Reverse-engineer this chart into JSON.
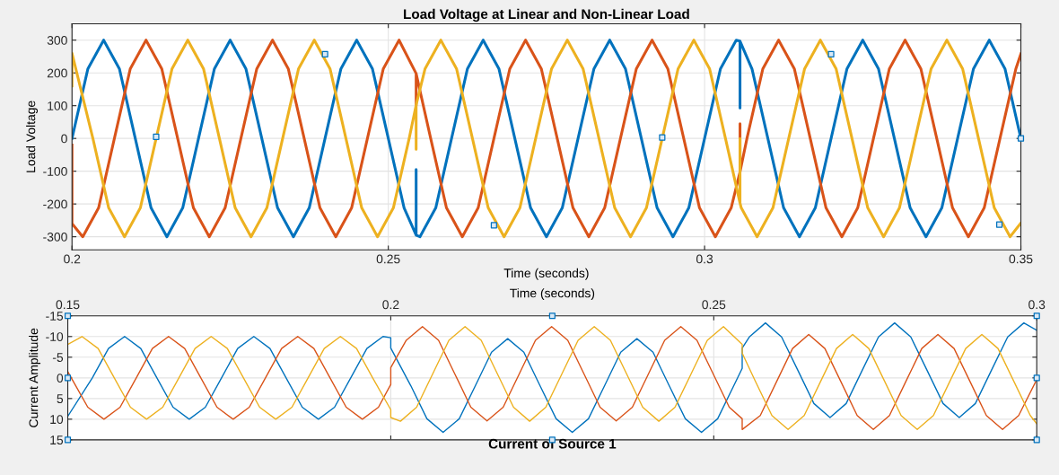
{
  "chart_data": [
    {
      "type": "line",
      "title": "Load Voltage at Linear and Non-Linear Load",
      "xlabel": "Time (seconds)",
      "ylabel": "Load Voltage",
      "xlim": [
        0.2,
        0.35
      ],
      "xticks": [
        0.2,
        0.25,
        0.3,
        0.35
      ],
      "ylim": [
        -340,
        350
      ],
      "yticks": [
        -300,
        -200,
        -100,
        0,
        100,
        200,
        300
      ],
      "grid": true,
      "series": [
        {
          "color": "#0072bd",
          "x": [
            0.2,
            0.2025,
            0.205,
            0.2075,
            0.21,
            0.2125,
            0.215,
            0.2175,
            0.22,
            0.2225,
            0.225,
            0.2275,
            0.23,
            0.2325,
            0.235,
            0.2375,
            0.24,
            0.2425,
            0.245,
            0.2475,
            0.25,
            0.2525,
            0.2544,
            0.2544,
            0.2544,
            0.255,
            0.2575,
            0.26,
            0.2625,
            0.265,
            0.2675,
            0.27,
            0.2725,
            0.275,
            0.2775,
            0.28,
            0.2825,
            0.285,
            0.2875,
            0.29,
            0.2925,
            0.295,
            0.2975,
            0.3,
            0.3025,
            0.305,
            0.3056,
            0.3056,
            0.3056,
            0.3075,
            0.31,
            0.3125,
            0.315,
            0.3175,
            0.32,
            0.3225,
            0.325,
            0.3275,
            0.33,
            0.3325,
            0.335,
            0.3375,
            0.34,
            0.3425,
            0.345,
            0.3475,
            0.35
          ],
          "values": [
            0,
            212,
            300,
            212,
            0,
            -212,
            -300,
            -212,
            0,
            212,
            300,
            212,
            0,
            -212,
            -300,
            -212,
            0,
            212,
            300,
            212,
            0,
            -212,
            -295,
            -95,
            -295,
            -300,
            -212,
            0,
            212,
            300,
            212,
            0,
            -212,
            -300,
            -212,
            0,
            212,
            300,
            212,
            0,
            -212,
            -300,
            -212,
            0,
            212,
            300,
            297,
            93,
            297,
            212,
            0,
            -212,
            -300,
            -212,
            0,
            212,
            300,
            212,
            0,
            -212,
            -300,
            -212,
            0,
            212,
            300,
            212,
            0
          ]
        },
        {
          "color": "#d95319",
          "x": [
            0.2,
            0.2,
            0.2017,
            0.2042,
            0.2067,
            0.2092,
            0.2117,
            0.2142,
            0.2167,
            0.2192,
            0.2217,
            0.2242,
            0.2267,
            0.2292,
            0.2317,
            0.2342,
            0.2367,
            0.2392,
            0.2417,
            0.2442,
            0.2467,
            0.2492,
            0.2517,
            0.2544,
            0.2544,
            0.2544,
            0.2567,
            0.2592,
            0.2617,
            0.2642,
            0.2667,
            0.2692,
            0.2717,
            0.2742,
            0.2767,
            0.2792,
            0.2817,
            0.2842,
            0.2867,
            0.2892,
            0.2917,
            0.2942,
            0.2967,
            0.2992,
            0.3017,
            0.3042,
            0.3056,
            0.3056,
            0.3056,
            0.3067,
            0.3092,
            0.3117,
            0.3142,
            0.3167,
            0.3192,
            0.3217,
            0.3242,
            0.3267,
            0.3292,
            0.3317,
            0.3342,
            0.3367,
            0.3392,
            0.3417,
            0.3442,
            0.3467,
            0.3492,
            0.35
          ],
          "values": [
            -20,
            -260,
            -300,
            -212,
            0,
            212,
            300,
            212,
            0,
            -212,
            -300,
            -212,
            0,
            212,
            300,
            212,
            0,
            -212,
            -300,
            -212,
            0,
            212,
            300,
            198,
            100,
            198,
            0,
            -212,
            -300,
            -212,
            0,
            212,
            300,
            212,
            0,
            -212,
            -300,
            -212,
            0,
            212,
            300,
            212,
            0,
            -212,
            -300,
            -212,
            -102,
            45,
            -102,
            0,
            212,
            300,
            212,
            0,
            -212,
            -300,
            -212,
            0,
            212,
            300,
            212,
            0,
            -212,
            -300,
            -212,
            0,
            212,
            258
          ]
        },
        {
          "color": "#edb120",
          "x": [
            0.2,
            0.2,
            0.2033,
            0.2058,
            0.2083,
            0.2108,
            0.2133,
            0.2158,
            0.2183,
            0.2208,
            0.2233,
            0.2258,
            0.2283,
            0.2308,
            0.2333,
            0.2358,
            0.2383,
            0.2408,
            0.2433,
            0.2458,
            0.2483,
            0.2508,
            0.2533,
            0.2544,
            0.2544,
            0.2544,
            0.2558,
            0.2583,
            0.2608,
            0.2633,
            0.2658,
            0.2683,
            0.2708,
            0.2733,
            0.2758,
            0.2783,
            0.2808,
            0.2833,
            0.2858,
            0.2883,
            0.2908,
            0.2933,
            0.2958,
            0.2983,
            0.3008,
            0.3033,
            0.3056,
            0.3056,
            0.3056,
            0.3058,
            0.3083,
            0.3108,
            0.3133,
            0.3158,
            0.3183,
            0.3208,
            0.3233,
            0.3258,
            0.3283,
            0.3308,
            0.3333,
            0.3358,
            0.3383,
            0.3408,
            0.3433,
            0.3458,
            0.3483,
            0.35
          ],
          "values": [
            160,
            260,
            0,
            -212,
            -300,
            -212,
            0,
            212,
            300,
            212,
            0,
            -212,
            -300,
            -212,
            0,
            212,
            300,
            212,
            0,
            -212,
            -300,
            -212,
            0,
            102,
            -33,
            102,
            212,
            300,
            212,
            0,
            -212,
            -300,
            -212,
            0,
            212,
            300,
            212,
            0,
            -212,
            -300,
            -212,
            0,
            212,
            300,
            212,
            0,
            -197,
            0,
            -197,
            -212,
            -300,
            -212,
            0,
            212,
            300,
            212,
            0,
            -212,
            -300,
            -212,
            0,
            212,
            300,
            212,
            0,
            -212,
            -300,
            -258
          ]
        },
        {
          "type": "scatter",
          "marker": "square",
          "color": "#0072bd",
          "x": [
            0.2133,
            0.24,
            0.2667,
            0.2933,
            0.32,
            0.3466,
            0.35
          ],
          "values": [
            5,
            257,
            -265,
            3,
            257,
            -263,
            0
          ]
        }
      ]
    },
    {
      "type": "line",
      "title": "Current of Source 1",
      "xlabel": "Time (seconds)",
      "ylabel": "Current Amplitude",
      "xlim": [
        0.15,
        0.3
      ],
      "xticks": [
        0.15,
        0.2,
        0.25,
        0.3
      ],
      "ylim": [
        15,
        -15
      ],
      "yticks": [
        -15,
        -10,
        -5,
        0,
        5,
        10,
        15
      ],
      "grid": true,
      "series": [
        {
          "color": "#0072bd",
          "x": [
            0.15,
            0.1538,
            0.1563,
            0.1588,
            0.1613,
            0.1638,
            0.1663,
            0.1688,
            0.1713,
            0.1738,
            0.1763,
            0.1788,
            0.1813,
            0.1838,
            0.1863,
            0.1888,
            0.1913,
            0.1938,
            0.1963,
            0.1988,
            0.2,
            0.2,
            0.2031,
            0.2056,
            0.2081,
            0.2106,
            0.2131,
            0.2156,
            0.2181,
            0.2206,
            0.2231,
            0.2256,
            0.2281,
            0.2306,
            0.2331,
            0.2356,
            0.2381,
            0.2406,
            0.2431,
            0.2456,
            0.2481,
            0.2506,
            0.2531,
            0.2544,
            0.2544,
            0.2555,
            0.258,
            0.2605,
            0.263,
            0.2655,
            0.268,
            0.2705,
            0.273,
            0.2755,
            0.278,
            0.2805,
            0.283,
            0.2855,
            0.288,
            0.2905,
            0.293,
            0.2955,
            0.298,
            0.3
          ],
          "values": [
            9.3,
            0,
            -7.1,
            -10,
            -7.1,
            0,
            7.1,
            10,
            7.1,
            0,
            -7.1,
            -10,
            -7.1,
            0,
            7.1,
            10,
            7.1,
            0,
            -7.1,
            -10,
            -9.7,
            -7.2,
            1.9,
            9.9,
            13.2,
            9.9,
            1.9,
            -6.2,
            -9.5,
            -6.2,
            1.9,
            9.9,
            13.2,
            9.9,
            1.9,
            -6.2,
            -9.5,
            -6.2,
            1.9,
            9.9,
            13.2,
            9.9,
            1.9,
            -2.3,
            -7.2,
            -9.9,
            -13.3,
            -9.9,
            -1.9,
            6.2,
            9.6,
            6.2,
            -1.9,
            -9.9,
            -13.3,
            -9.9,
            -1.9,
            6.2,
            9.6,
            6.2,
            -1.9,
            -9.9,
            -13.3,
            -11.5
          ]
        },
        {
          "color": "#d95319",
          "x": [
            0.15,
            0.1531,
            0.1556,
            0.1581,
            0.1606,
            0.1631,
            0.1656,
            0.1681,
            0.1706,
            0.1731,
            0.1756,
            0.1781,
            0.1806,
            0.1831,
            0.1856,
            0.1881,
            0.1906,
            0.1931,
            0.1956,
            0.1981,
            0.2,
            0.2,
            0.2024,
            0.2049,
            0.2074,
            0.2099,
            0.2124,
            0.2149,
            0.2174,
            0.2199,
            0.2224,
            0.2249,
            0.2274,
            0.2299,
            0.2324,
            0.2349,
            0.2374,
            0.2399,
            0.2424,
            0.2449,
            0.2474,
            0.2499,
            0.2524,
            0.2544,
            0.2544,
            0.2572,
            0.2597,
            0.2622,
            0.2647,
            0.2672,
            0.2697,
            0.2722,
            0.2747,
            0.2772,
            0.2797,
            0.2822,
            0.2847,
            0.2872,
            0.2897,
            0.2922,
            0.2947,
            0.2972,
            0.3
          ],
          "values": [
            -1.5,
            7.1,
            10,
            7.1,
            0,
            -7.1,
            -10,
            -7.1,
            0,
            7.1,
            10,
            7.1,
            0,
            -7.1,
            -10,
            -7.1,
            0,
            7.1,
            10,
            7.1,
            1.6,
            -2.5,
            -9.1,
            -12.4,
            -9.1,
            -1,
            7.1,
            10.4,
            7.1,
            -1,
            -9.1,
            -12.4,
            -9.1,
            -1,
            7.1,
            10.4,
            7.1,
            -1,
            -9.1,
            -12.4,
            -9.1,
            -1,
            7.1,
            9.9,
            12.5,
            9.1,
            1,
            -7.1,
            -10.5,
            -7.1,
            1,
            9.1,
            12.5,
            9.1,
            1,
            -7.1,
            -10.5,
            -7.1,
            1,
            9.1,
            12.5,
            9.1,
            0.4
          ]
        },
        {
          "color": "#edb120",
          "x": [
            0.15,
            0.1522,
            0.1547,
            0.1572,
            0.1597,
            0.1622,
            0.1647,
            0.1672,
            0.1697,
            0.1722,
            0.1747,
            0.1772,
            0.1797,
            0.1822,
            0.1847,
            0.1872,
            0.1897,
            0.1922,
            0.1947,
            0.1972,
            0.2,
            0.2,
            0.2015,
            0.204,
            0.2065,
            0.209,
            0.2115,
            0.214,
            0.2165,
            0.219,
            0.2215,
            0.224,
            0.2265,
            0.229,
            0.2315,
            0.234,
            0.2365,
            0.239,
            0.2415,
            0.244,
            0.2465,
            0.249,
            0.2515,
            0.2544,
            0.2544,
            0.2565,
            0.259,
            0.2615,
            0.264,
            0.2665,
            0.269,
            0.2715,
            0.274,
            0.2765,
            0.279,
            0.2815,
            0.284,
            0.2865,
            0.289,
            0.2915,
            0.294,
            0.2965,
            0.299,
            0.3
          ],
          "values": [
            -8.1,
            -10,
            -7.1,
            0,
            7.1,
            10,
            7.1,
            0,
            -7.1,
            -10,
            -7.1,
            0,
            7.1,
            10,
            7.1,
            0,
            -7.1,
            -10,
            -7.1,
            0,
            7.7,
            9.6,
            10.5,
            7.1,
            -1,
            -9.1,
            -12.4,
            -9.1,
            -1,
            7.1,
            10.5,
            7.1,
            -1,
            -9.1,
            -12.4,
            -9.1,
            -1,
            7.1,
            10.5,
            7.1,
            -1,
            -9.1,
            -12.4,
            -8.1,
            -6,
            1,
            9.1,
            12.5,
            9.1,
            1,
            -7.1,
            -10.5,
            -7.1,
            1,
            9.1,
            12.5,
            9.1,
            1,
            -7.1,
            -10.5,
            -7.1,
            1,
            9.1,
            11.1
          ]
        },
        {
          "type": "scatter",
          "marker": "square",
          "color": "#0072bd",
          "x": [
            0.15,
            0.15,
            0.15,
            0.225,
            0.225,
            0.3,
            0.3,
            0.3
          ],
          "values": [
            -15,
            0,
            15,
            -15,
            15,
            -15,
            0,
            15
          ]
        }
      ]
    }
  ]
}
